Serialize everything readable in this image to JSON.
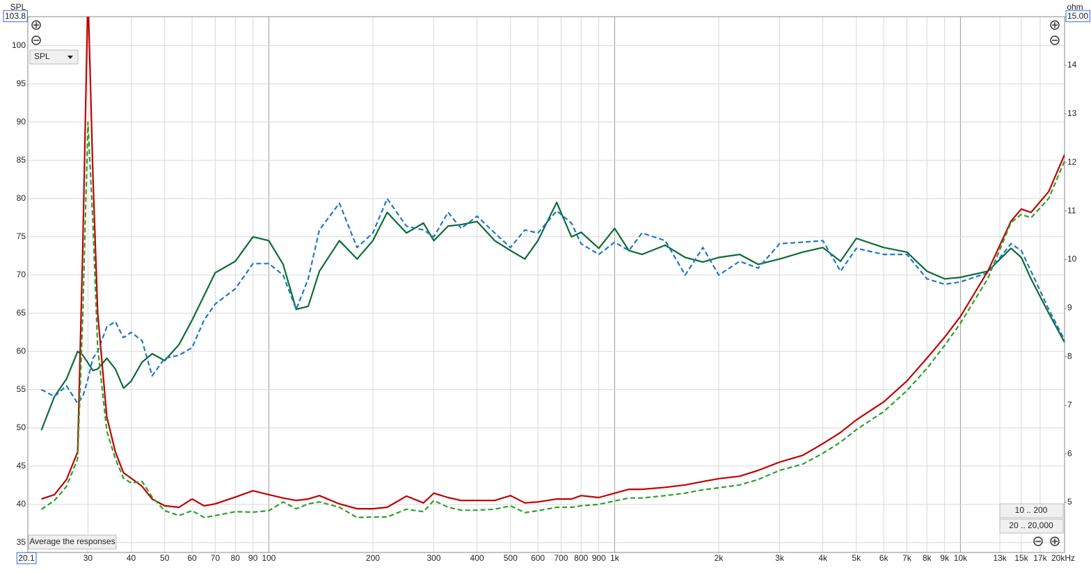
{
  "chart_data": {
    "type": "line",
    "ylabel": "SPL",
    "y2label": "ohm",
    "log_x": true,
    "grid": true,
    "xlim": [
      20.1,
      20000
    ],
    "ylim": [
      33.7,
      103.8
    ],
    "y2lim": [
      3.97,
      15
    ],
    "xticks": [
      20.1,
      30,
      40,
      50,
      60,
      70,
      80,
      90,
      100,
      200,
      300,
      400,
      500,
      600,
      700,
      800,
      900,
      {
        "value": 1000,
        "label": "1k"
      },
      {
        "value": 2000,
        "label": "2k"
      },
      {
        "value": 3000,
        "label": "3k"
      },
      {
        "value": 4000,
        "label": "4k"
      },
      {
        "value": 5000,
        "label": "5k"
      },
      {
        "value": 6000,
        "label": "6k"
      },
      {
        "value": 7000,
        "label": "7k"
      },
      {
        "value": 8000,
        "label": "8k"
      },
      {
        "value": 9000,
        "label": "9k"
      },
      {
        "value": 10000,
        "label": "10k"
      },
      {
        "value": 13000,
        "label": "13k"
      },
      {
        "value": 15000,
        "label": "15k"
      },
      {
        "value": 17000,
        "label": "17k"
      },
      {
        "value": 20000,
        "label": "20kHz"
      }
    ],
    "yticks": [
      35,
      40,
      45,
      50,
      55,
      60,
      65,
      70,
      75,
      80,
      85,
      90,
      95,
      100,
      103.8
    ],
    "y2ticks": [
      5,
      6,
      7,
      8,
      9,
      10,
      11,
      12,
      13,
      14,
      {
        "value": 15,
        "label": "15.00"
      }
    ],
    "x": [
      22,
      24,
      26,
      28,
      29,
      30,
      31,
      32,
      34,
      36,
      38,
      40,
      43,
      46,
      50,
      55,
      60,
      65,
      70,
      80,
      90,
      100,
      110,
      120,
      130,
      140,
      160,
      180,
      200,
      220,
      250,
      280,
      300,
      330,
      360,
      400,
      450,
      500,
      550,
      600,
      680,
      750,
      800,
      900,
      1000,
      1100,
      1200,
      1400,
      1600,
      1800,
      2000,
      2300,
      2600,
      3000,
      3500,
      4000,
      4500,
      5000,
      6000,
      7000,
      8000,
      9000,
      10000,
      12000,
      14000,
      15000,
      16000,
      18000,
      20000
    ],
    "series": [
      {
        "color": "#0b6b35",
        "style": "solid",
        "axis": "y",
        "values": [
          49.7,
          54.1,
          56.4,
          60.0,
          59.5,
          58.5,
          57.5,
          57.7,
          59.1,
          57.7,
          55.2,
          56.1,
          58.6,
          59.7,
          58.8,
          60.9,
          64.1,
          67.3,
          70.3,
          71.8,
          75.0,
          74.5,
          71.4,
          65.5,
          65.9,
          70.5,
          74.5,
          72.1,
          74.5,
          78.2,
          75.5,
          76.8,
          74.5,
          76.4,
          76.6,
          77.0,
          74.5,
          73.2,
          72.1,
          74.5,
          79.5,
          75.0,
          75.6,
          73.5,
          76.1,
          73.2,
          72.7,
          73.9,
          72.3,
          71.7,
          72.3,
          72.7,
          71.4,
          72.1,
          73.0,
          73.6,
          71.8,
          74.8,
          73.6,
          73.0,
          70.5,
          69.5,
          69.7,
          70.5,
          73.5,
          72.3,
          69.5,
          65.0,
          61.2
        ]
      },
      {
        "color": "#1f77c8",
        "style": "dashed",
        "axis": "y",
        "values": [
          55.0,
          54.1,
          55.5,
          53.2,
          54.1,
          56.4,
          59.1,
          60.0,
          63.2,
          63.9,
          61.8,
          62.5,
          61.4,
          56.8,
          59.1,
          59.5,
          60.5,
          64.1,
          66.2,
          68.2,
          71.5,
          71.5,
          70.0,
          65.5,
          69.5,
          75.9,
          79.4,
          73.6,
          75.5,
          80.0,
          76.4,
          75.9,
          75.0,
          78.2,
          76.1,
          77.7,
          75.5,
          73.6,
          75.9,
          75.5,
          78.4,
          76.8,
          74.1,
          72.7,
          74.3,
          73.2,
          75.5,
          74.5,
          70.0,
          73.6,
          70.0,
          71.8,
          70.9,
          74.1,
          74.3,
          74.5,
          70.5,
          73.5,
          72.7,
          72.7,
          69.5,
          68.8,
          69.1,
          70.3,
          74.1,
          73.2,
          70.5,
          65.5,
          61.5
        ]
      },
      {
        "color": "#c00000",
        "style": "solid",
        "axis": "y2",
        "values": [
          5.07,
          5.16,
          5.47,
          6.04,
          10.33,
          15.5,
          11.76,
          8.9,
          6.76,
          6.04,
          5.61,
          5.5,
          5.33,
          5.07,
          4.93,
          4.9,
          5.07,
          4.93,
          4.97,
          5.11,
          5.24,
          5.16,
          5.09,
          5.04,
          5.07,
          5.14,
          4.97,
          4.87,
          4.87,
          4.9,
          5.13,
          4.99,
          5.19,
          5.1,
          5.04,
          5.04,
          5.04,
          5.14,
          4.99,
          5.01,
          5.07,
          5.07,
          5.14,
          5.1,
          5.19,
          5.27,
          5.27,
          5.31,
          5.36,
          5.43,
          5.49,
          5.54,
          5.66,
          5.83,
          5.97,
          6.21,
          6.44,
          6.7,
          7.07,
          7.5,
          7.97,
          8.4,
          8.83,
          9.76,
          10.79,
          11.04,
          10.97,
          11.4,
          12.16
        ]
      },
      {
        "color": "#2ca02c",
        "style": "dashed",
        "axis": "y2",
        "values": [
          4.86,
          5.04,
          5.33,
          5.9,
          8.9,
          12.83,
          10.76,
          8.19,
          6.47,
          5.9,
          5.5,
          5.4,
          5.43,
          5.11,
          4.83,
          4.73,
          4.83,
          4.69,
          4.73,
          4.81,
          4.8,
          4.83,
          5.01,
          4.87,
          4.97,
          5.01,
          4.9,
          4.69,
          4.7,
          4.7,
          4.86,
          4.81,
          5.04,
          4.9,
          4.84,
          4.84,
          4.86,
          4.93,
          4.79,
          4.83,
          4.9,
          4.9,
          4.93,
          4.96,
          5.03,
          5.09,
          5.09,
          5.14,
          5.19,
          5.26,
          5.3,
          5.36,
          5.47,
          5.66,
          5.79,
          6.01,
          6.24,
          6.5,
          6.87,
          7.3,
          7.76,
          8.23,
          8.69,
          9.61,
          10.76,
          10.93,
          10.86,
          11.26,
          12.03
        ]
      }
    ]
  },
  "controls": {
    "dropdown": "SPL",
    "average_button": "Average the responses",
    "range_buttons": [
      "10 .. 200",
      "20 .. 20,000"
    ]
  }
}
